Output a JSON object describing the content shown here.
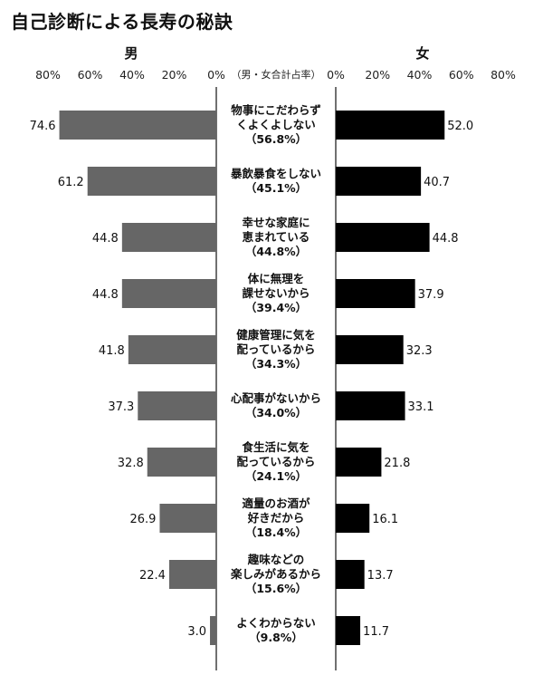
{
  "chart_data": {
    "type": "bar",
    "title": "自己診断による長寿の秘訣",
    "note": "（男・女合計占率）",
    "axis_ticks": [
      "80%",
      "60%",
      "40%",
      "20%",
      "0%"
    ],
    "axis_ticks_right": [
      "0%",
      "20%",
      "40%",
      "60%",
      "80%"
    ],
    "xlim": [
      0,
      80
    ],
    "categories": [
      {
        "lines": [
          "物事にこだわらず",
          "くよくよしない",
          "（56.8%）"
        ]
      },
      {
        "lines": [
          "暴飲暴食をしない",
          "（45.1%）"
        ]
      },
      {
        "lines": [
          "幸せな家庭に",
          "恵まれている",
          "（44.8%）"
        ]
      },
      {
        "lines": [
          "体に無理を",
          "課せないから",
          "（39.4%）"
        ]
      },
      {
        "lines": [
          "健康管理に気を",
          "配っているから",
          "（34.3%）"
        ]
      },
      {
        "lines": [
          "心配事がないから",
          "（34.0%）"
        ]
      },
      {
        "lines": [
          "食生活に気を",
          "配っているから",
          "（24.1%）"
        ]
      },
      {
        "lines": [
          "適量のお酒が",
          "好きだから",
          "（18.4%）"
        ]
      },
      {
        "lines": [
          "趣味などの",
          "楽しみがあるから",
          "（15.6%）"
        ]
      },
      {
        "lines": [
          "よくわからない",
          "（9.8%）"
        ]
      }
    ],
    "series": [
      {
        "name": "男",
        "color": "#666666",
        "values": [
          74.6,
          61.2,
          44.8,
          44.8,
          41.8,
          37.3,
          32.8,
          26.9,
          22.4,
          3.0
        ],
        "labels": [
          "74.6",
          "61.2",
          "44.8",
          "44.8",
          "41.8",
          "37.3",
          "32.8",
          "26.9",
          "22.4",
          "3.0"
        ]
      },
      {
        "name": "女",
        "color": "#000000",
        "values": [
          52.0,
          40.7,
          44.8,
          37.9,
          32.3,
          33.1,
          21.8,
          16.1,
          13.7,
          11.7
        ],
        "labels": [
          "52.0",
          "40.7",
          "44.8",
          "37.9",
          "32.3",
          "33.1",
          "21.8",
          "16.1",
          "13.7",
          "11.7"
        ]
      }
    ]
  }
}
